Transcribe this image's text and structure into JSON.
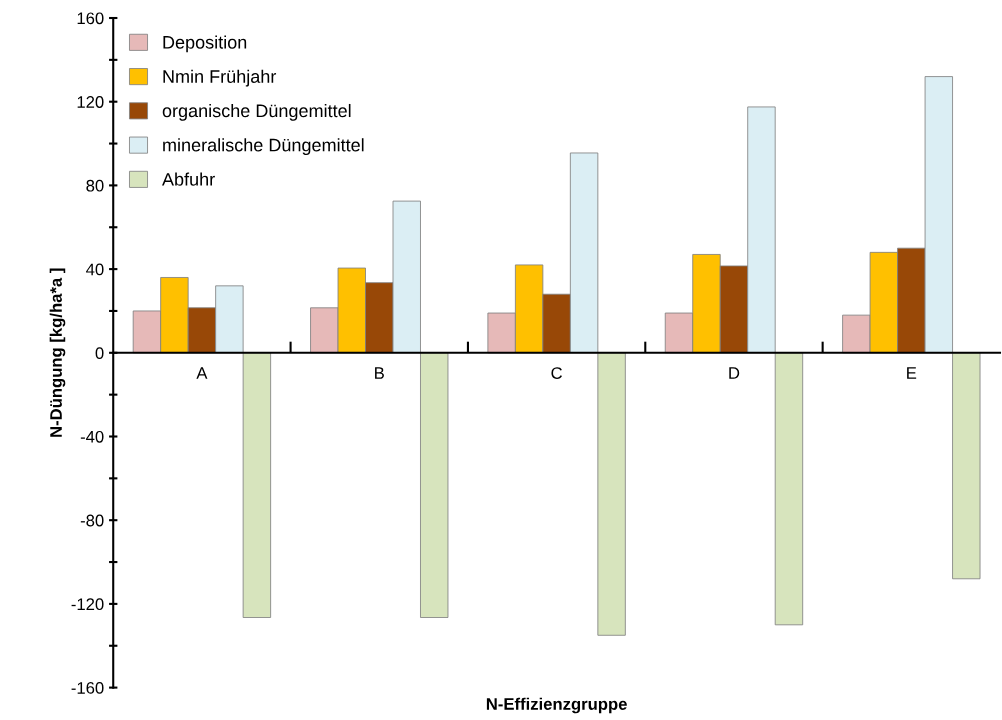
{
  "chart_data": {
    "type": "bar",
    "xlabel": "N-Effizienzgruppe",
    "ylabel": "N-Düngung [kg/ha*a ]",
    "categories": [
      "A",
      "B",
      "C",
      "D",
      "E"
    ],
    "series": [
      {
        "name": "Deposition",
        "color": "#e6b9b8",
        "values": [
          20,
          21.5,
          19,
          19,
          18
        ]
      },
      {
        "name": "Nmin Frühjahr",
        "color": "#ffc000",
        "values": [
          36,
          40.5,
          42,
          47,
          48
        ]
      },
      {
        "name": "organische Düngemittel",
        "color": "#984807",
        "values": [
          21.5,
          33.5,
          28,
          41.5,
          50
        ]
      },
      {
        "name": "mineralische Düngemittel",
        "color": "#dbeef4",
        "values": [
          32,
          72.5,
          95.5,
          117.5,
          132
        ]
      },
      {
        "name": "Abfuhr",
        "color": "#d7e4bd",
        "values": [
          -126.5,
          -126.5,
          -135,
          -130,
          -108
        ]
      }
    ],
    "ylim": [
      -160,
      160
    ],
    "yticks": [
      -160,
      {
        "value": -140,
        "label": null
      },
      -120,
      {
        "value": -100,
        "label": null
      },
      -80,
      {
        "value": -60,
        "label": null
      },
      -40,
      {
        "value": -20,
        "label": null
      },
      0,
      {
        "value": 20,
        "label": null
      },
      40,
      {
        "value": 60,
        "label": null
      },
      80,
      {
        "value": 100,
        "label": null
      },
      120,
      {
        "value": 140,
        "label": null
      },
      160
    ],
    "grid": false,
    "legend": "top left"
  }
}
